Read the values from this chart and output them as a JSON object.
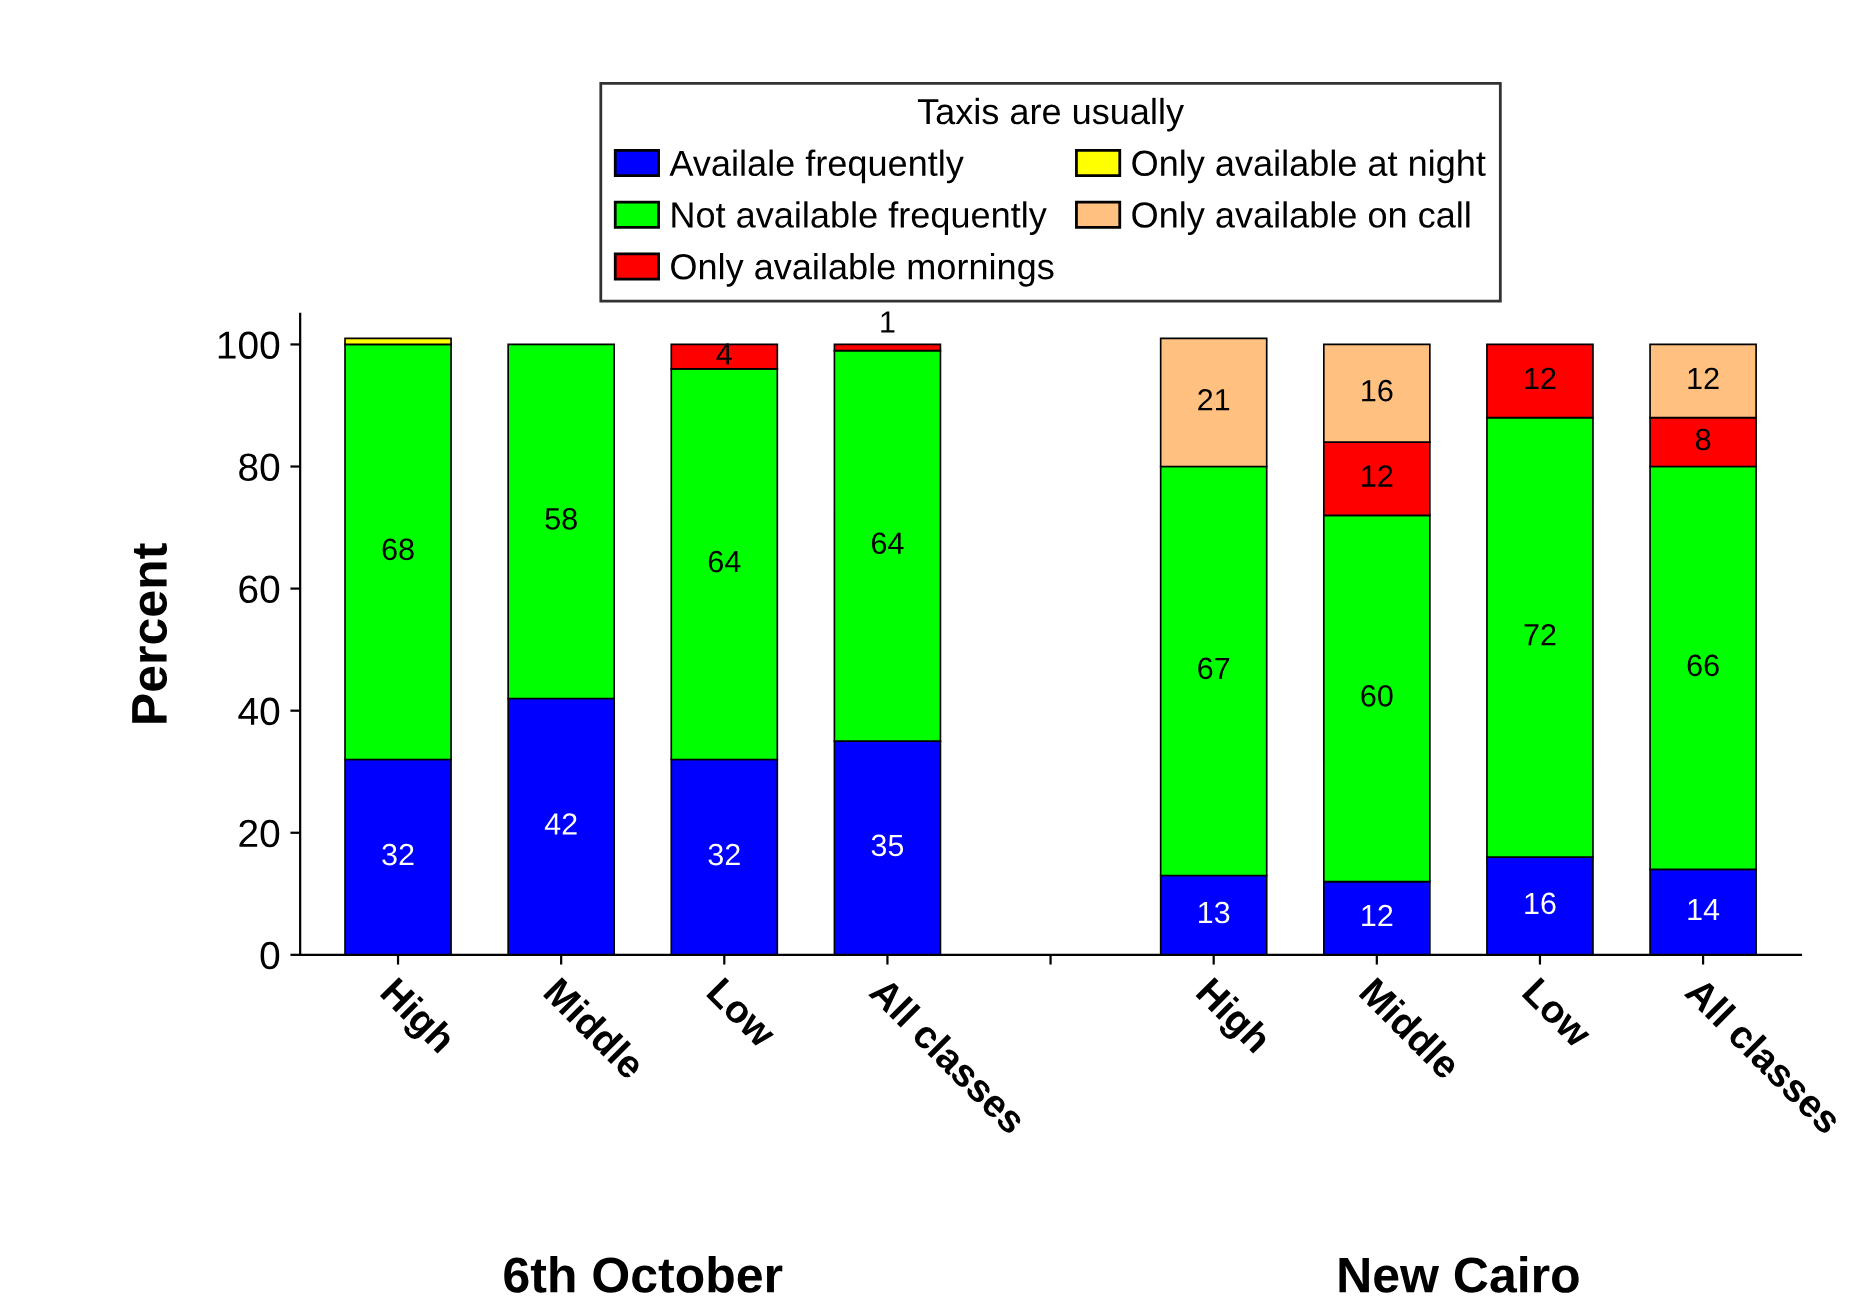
{
  "chart_data": {
    "type": "bar",
    "stacked": true,
    "ylabel": "Percent",
    "legend_title": "Taxis are usually",
    "legend": "top",
    "categories": [
      "High",
      "Middle",
      "Low",
      "All classes",
      null,
      "High",
      "Middle",
      "Low",
      "All classes"
    ],
    "ylim": [
      0,
      105
    ],
    "yticks": [
      0,
      20,
      40,
      60,
      80,
      100
    ],
    "grid": false,
    "series": [
      {
        "name": "Availale frequently",
        "color": "#0000ff",
        "values": [
          32,
          42,
          32,
          35,
          null,
          13,
          12,
          16,
          14
        ],
        "value_labels": [
          "32",
          "42",
          "32",
          "35",
          null,
          "13",
          "12",
          "16",
          "14"
        ]
      },
      {
        "name": "Not available frequently",
        "color": "#00ff00",
        "values": [
          68,
          58,
          64,
          64,
          null,
          67,
          60,
          72,
          66
        ],
        "value_labels": [
          "68",
          "58",
          "64",
          "64",
          null,
          "67",
          "60",
          "72",
          "66"
        ]
      },
      {
        "name": "Only available mornings",
        "color": "#ff0000",
        "values": [
          null,
          null,
          4,
          1,
          null,
          null,
          12,
          12,
          8
        ],
        "value_labels": [
          null,
          null,
          "4",
          "1",
          null,
          null,
          "12",
          "12",
          "8"
        ]
      },
      {
        "name": "Only available at night",
        "color": "#ffff00",
        "values": [
          1,
          null,
          null,
          null,
          null,
          null,
          null,
          null,
          null
        ]
      },
      {
        "name": "Only available on call",
        "color": "#ffc080",
        "values": [
          null,
          null,
          null,
          null,
          null,
          21,
          16,
          null,
          12
        ],
        "value_labels": [
          null,
          null,
          null,
          null,
          null,
          "21",
          "16",
          null,
          "12"
        ]
      }
    ],
    "annotations": [
      "6th October",
      "New Cairo"
    ]
  }
}
